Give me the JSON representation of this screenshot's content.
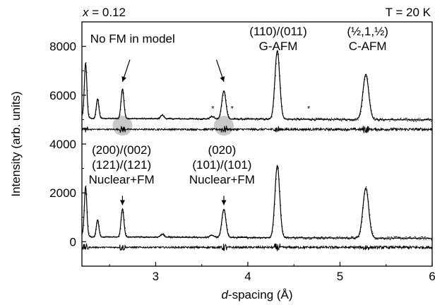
{
  "chart_data": {
    "type": "line",
    "title": "",
    "corner_left": {
      "var": "x",
      "rest": " = 0.12"
    },
    "corner_right": "T = 20 K",
    "xlabel": {
      "var": "d",
      "rest": "-spacing (Å)"
    },
    "ylabel": "Intensity (arb. units)",
    "xlim": [
      2.2,
      6.0
    ],
    "ylim": [
      -1000,
      9000
    ],
    "xticks": [
      3,
      4,
      5,
      6
    ],
    "yticks": [
      0,
      2000,
      4000,
      6000,
      8000
    ],
    "grid": false,
    "legend": "none",
    "line_color": "#000000",
    "highlight_color": "#c8c8c8",
    "series": [
      {
        "role": "upper pattern",
        "baseline": 5050,
        "peaks": [
          {
            "d": 2.24,
            "height": 2200
          },
          {
            "d": 2.37,
            "height": 800
          },
          {
            "d": 2.64,
            "height": 1200
          },
          {
            "d": 3.07,
            "height": 150
          },
          {
            "d": 3.61,
            "height": 100
          },
          {
            "d": 3.74,
            "height": 1150
          },
          {
            "d": 4.32,
            "height": 2800
          },
          {
            "d": 5.28,
            "height": 1850
          }
        ]
      },
      {
        "role": "lower pattern",
        "baseline": 200,
        "peaks": [
          {
            "d": 2.24,
            "height": 2000
          },
          {
            "d": 2.37,
            "height": 700
          },
          {
            "d": 2.64,
            "height": 1150
          },
          {
            "d": 3.07,
            "height": 130
          },
          {
            "d": 3.61,
            "height": 90
          },
          {
            "d": 3.74,
            "height": 1150
          },
          {
            "d": 4.32,
            "height": 2950
          },
          {
            "d": 5.28,
            "height": 2050
          }
        ]
      },
      {
        "role": "upper difference",
        "baseline": 4600
      },
      {
        "role": "lower difference",
        "baseline": -230
      }
    ],
    "highlight_circles": [
      {
        "d": 2.64,
        "y": 4750
      },
      {
        "d": 3.74,
        "y": 4750
      }
    ],
    "asterisks": [
      {
        "d": 3.62,
        "y": 5350
      },
      {
        "d": 3.83,
        "y": 5350
      },
      {
        "d": 4.66,
        "y": 5350
      }
    ],
    "annotations": [
      {
        "lines": [
          "No FM in model"
        ],
        "x": 2.75,
        "y": 8150,
        "arrows": [
          {
            "from": [
              2.72,
              7450
            ],
            "to": [
              2.64,
              6550
            ]
          },
          {
            "from": [
              3.66,
              7450
            ],
            "to": [
              3.74,
              6550
            ]
          }
        ]
      },
      {
        "lines": [
          "(110)/(011)",
          "G-AFM"
        ],
        "x": 4.33,
        "y": 8450
      },
      {
        "lines": [
          "(½,1,½)",
          "C-AFM"
        ],
        "x": 5.3,
        "y": 8450
      },
      {
        "lines": [
          "(200)/(002)",
          "(121)/(121)",
          "Nuclear+FM"
        ],
        "x": 2.63,
        "y": 3600,
        "arrows": [
          {
            "from": [
              2.64,
              1880
            ],
            "to": [
              2.64,
              1500
            ]
          }
        ]
      },
      {
        "lines": [
          "(020)",
          "(101)/(101)",
          "Nuclear+FM"
        ],
        "x": 3.72,
        "y": 3600,
        "arrows": [
          {
            "from": [
              3.74,
              1880
            ],
            "to": [
              3.74,
              1500
            ]
          }
        ]
      }
    ]
  }
}
